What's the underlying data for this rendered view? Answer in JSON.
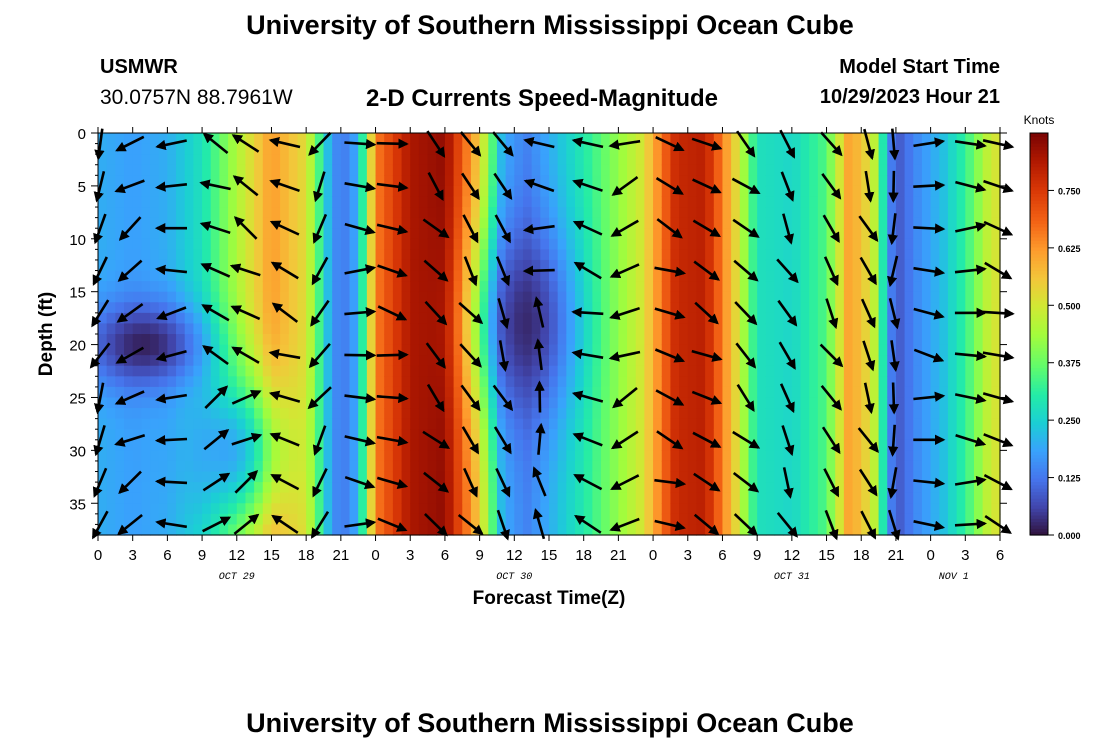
{
  "header": {
    "title_top": "University of Southern Mississippi Ocean Cube",
    "title_bottom": "University of Southern Mississippi Ocean Cube",
    "station": "USMWR",
    "coords": "30.0757N  88.7961W",
    "model_start_label": "Model Start Time",
    "model_start_value": "10/29/2023 Hour 21"
  },
  "chart_data": {
    "type": "heatmap",
    "title": "2-D Currents Speed-Magnitude",
    "xlabel": "Forecast Time(Z)",
    "ylabel": "Depth (ft)",
    "x_range_hours": [
      0,
      78
    ],
    "ylim": [
      0,
      38
    ],
    "x_ticks": [
      "0",
      "3",
      "6",
      "9",
      "12",
      "15",
      "18",
      "21",
      "0",
      "3",
      "6",
      "9",
      "12",
      "15",
      "18",
      "21",
      "0",
      "3",
      "6",
      "9",
      "12",
      "15",
      "18",
      "21",
      "0",
      "3",
      "6"
    ],
    "y_ticks": [
      "0",
      "5",
      "10",
      "15",
      "20",
      "25",
      "30",
      "35"
    ],
    "y_tick_values": [
      0,
      5,
      10,
      15,
      20,
      25,
      30,
      35
    ],
    "date_labels": [
      {
        "text": "OCT 29",
        "hour": 12
      },
      {
        "text": "OCT 30",
        "hour": 36
      },
      {
        "text": "OCT 31",
        "hour": 60
      },
      {
        "text": "NOV 1",
        "hour": 74
      }
    ],
    "colorbar": {
      "unit": "Knots",
      "min": 0.0,
      "max": 0.875,
      "ticks": [
        "0.000",
        "0.125",
        "0.250",
        "0.375",
        "0.500",
        "0.625",
        "0.750"
      ],
      "tick_values": [
        0,
        0.125,
        0.25,
        0.375,
        0.5,
        0.625,
        0.75
      ]
    },
    "speed_by_hour": [
      {
        "hour": 0,
        "speed": 0.2
      },
      {
        "hour": 3,
        "speed": 0.18
      },
      {
        "hour": 6,
        "speed": 0.2
      },
      {
        "hour": 9,
        "speed": 0.28
      },
      {
        "hour": 12,
        "speed": 0.45
      },
      {
        "hour": 15,
        "speed": 0.62
      },
      {
        "hour": 18,
        "speed": 0.52
      },
      {
        "hour": 20,
        "speed": 0.2
      },
      {
        "hour": 21,
        "speed": 0.12
      },
      {
        "hour": 22.5,
        "speed": 0.2
      },
      {
        "hour": 24,
        "speed": 0.65
      },
      {
        "hour": 27,
        "speed": 0.82
      },
      {
        "hour": 30,
        "speed": 0.85
      },
      {
        "hour": 33,
        "speed": 0.55
      },
      {
        "hour": 35,
        "speed": 0.2
      },
      {
        "hour": 37,
        "speed": 0.14
      },
      {
        "hour": 39,
        "speed": 0.2
      },
      {
        "hour": 42,
        "speed": 0.3
      },
      {
        "hour": 45,
        "speed": 0.42
      },
      {
        "hour": 47,
        "speed": 0.5
      },
      {
        "hour": 50,
        "speed": 0.78
      },
      {
        "hour": 52.5,
        "speed": 0.8
      },
      {
        "hour": 55,
        "speed": 0.55
      },
      {
        "hour": 57,
        "speed": 0.28
      },
      {
        "hour": 60,
        "speed": 0.26
      },
      {
        "hour": 63,
        "speed": 0.35
      },
      {
        "hour": 65,
        "speed": 0.62
      },
      {
        "hour": 67,
        "speed": 0.5
      },
      {
        "hour": 68.5,
        "speed": 0.15
      },
      {
        "hour": 69,
        "speed": 0.08
      },
      {
        "hour": 71,
        "speed": 0.16
      },
      {
        "hour": 73,
        "speed": 0.22
      },
      {
        "hour": 75,
        "speed": 0.32
      },
      {
        "hour": 77,
        "speed": 0.48
      },
      {
        "hour": 78,
        "speed": 0.52
      }
    ],
    "slow_zones": [
      {
        "hour": 4,
        "depth": 20,
        "width_hours": 5,
        "width_ft": 4,
        "depth_factor": 0.9
      },
      {
        "hour": 12,
        "depth": 30,
        "width_hours": 4,
        "width_ft": 7,
        "depth_factor": 0.55
      },
      {
        "hour": 37,
        "depth": 18,
        "width_hours": 4,
        "width_ft": 9,
        "depth_factor": 0.8
      }
    ],
    "vector_hours": [
      0.2,
      2.8,
      6.4,
      10.2,
      12.8,
      16.2,
      19.2,
      22.6,
      25.4,
      29.2,
      32.2,
      35.0,
      38.2,
      42.4,
      45.6,
      49.4,
      52.6,
      56.0,
      59.6,
      63.4,
      66.6,
      68.8,
      71.8,
      75.4,
      77.8
    ],
    "vector_depths": [
      1,
      5,
      9,
      13,
      17,
      21,
      25,
      29,
      33,
      37
    ],
    "vector_direction_deg_by_hour": [
      {
        "hour": 0,
        "dir": 200
      },
      {
        "hour": 3,
        "dir": 240
      },
      {
        "hour": 6,
        "dir": 260
      },
      {
        "hour": 9,
        "dir": 290
      },
      {
        "hour": 12,
        "dir": 300
      },
      {
        "hour": 15,
        "dir": 300
      },
      {
        "hour": 18,
        "dir": 280
      },
      {
        "hour": 21,
        "dir": 110
      },
      {
        "hour": 24,
        "dir": 80
      },
      {
        "hour": 27,
        "dir": 130
      },
      {
        "hour": 30,
        "dir": 140
      },
      {
        "hour": 33,
        "dir": 145
      },
      {
        "hour": 36,
        "dir": 160
      },
      {
        "hour": 39,
        "dir": 320
      },
      {
        "hour": 42,
        "dir": 290
      },
      {
        "hour": 45,
        "dir": 280
      },
      {
        "hour": 48,
        "dir": 110
      },
      {
        "hour": 51,
        "dir": 115
      },
      {
        "hour": 54,
        "dir": 120
      },
      {
        "hour": 57,
        "dir": 140
      },
      {
        "hour": 60,
        "dir": 155
      },
      {
        "hour": 63,
        "dir": 150
      },
      {
        "hour": 66,
        "dir": 150
      },
      {
        "hour": 69,
        "dir": 180
      },
      {
        "hour": 72,
        "dir": 90
      },
      {
        "hour": 75,
        "dir": 90
      },
      {
        "hour": 78,
        "dir": 110
      }
    ]
  }
}
